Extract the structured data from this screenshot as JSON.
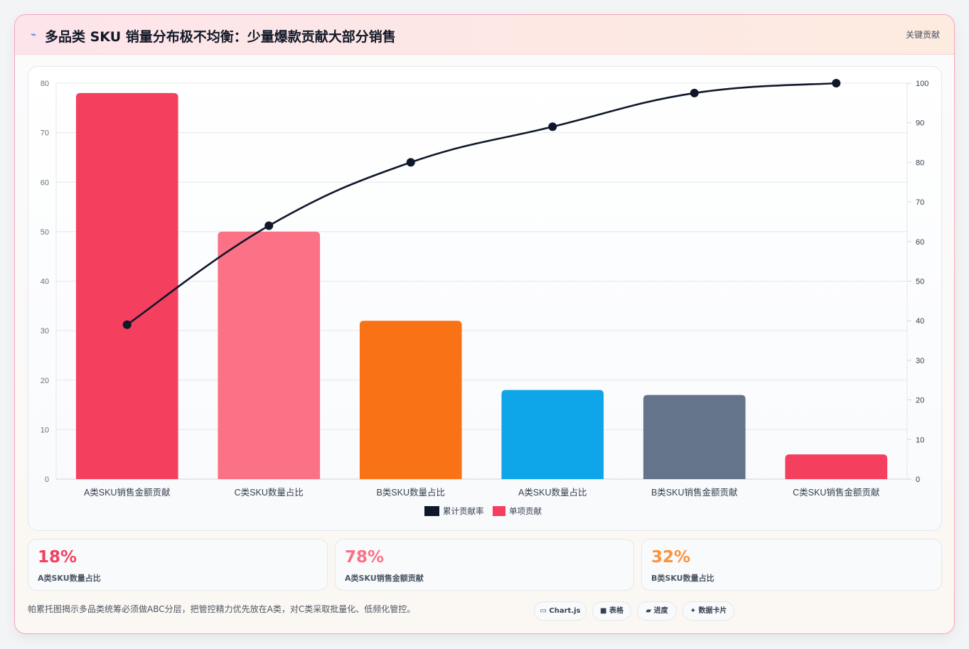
{
  "header": {
    "icon": "sparkle-icon",
    "title": "多品类 SKU 销量分布极不均衡：少量爆款贡献大部分销售",
    "tag": "关键贡献"
  },
  "chart_data": {
    "type": "bar",
    "categories": [
      "A类SKU销售金额贡献",
      "C类SKU数量占比",
      "B类SKU数量占比",
      "A类SKU数量占比",
      "B类SKU销售金额贡献",
      "C类SKU销售金额贡献"
    ],
    "values": [
      78,
      50,
      32,
      18,
      17,
      5
    ],
    "bar_colors": [
      "#f43f5e",
      "#fb7185",
      "#f97316",
      "#0ea5e9",
      "#64748b",
      "#f43f5e"
    ],
    "line": {
      "name": "累计贡献率",
      "values": [
        39,
        64,
        80,
        89,
        97.5,
        100
      ],
      "color": "#0f172a"
    },
    "bar_series_name": "单项贡献",
    "y_left": {
      "ticks": [
        0,
        10,
        20,
        30,
        40,
        50,
        60,
        70,
        80
      ],
      "lim": [
        0,
        80
      ]
    },
    "y_right": {
      "ticks": [
        0,
        10,
        20,
        30,
        40,
        50,
        60,
        70,
        80,
        90,
        100
      ],
      "lim": [
        0,
        100
      ]
    },
    "legend": [
      {
        "label": "累计贡献率",
        "color": "#0f172a"
      },
      {
        "label": "单项贡献",
        "color": "#f43f5e"
      }
    ],
    "legend_position": "bottom",
    "grid": true
  },
  "kpis": [
    {
      "value": "18%",
      "label": "A类SKU数量占比",
      "color": "#f43f5e"
    },
    {
      "value": "78%",
      "label": "A类SKU销售金额贡献",
      "color": "#fb7185"
    },
    {
      "value": "32%",
      "label": "B类SKU数量占比",
      "color": "#fb923c"
    }
  ],
  "footer": {
    "note": "帕累托图揭示多品类统筹必须做ABC分层，把管控精力优先放在A类，对C类采取批量化、低频化管控。",
    "pills": [
      {
        "icon": "chart-icon",
        "glyph": "▭",
        "label": "Chart.js"
      },
      {
        "icon": "table-icon",
        "glyph": "■",
        "label": "表格"
      },
      {
        "icon": "progress-icon",
        "glyph": "▰",
        "label": "进度"
      },
      {
        "icon": "data-card-icon",
        "glyph": "✦",
        "label": "数据卡片"
      }
    ]
  }
}
